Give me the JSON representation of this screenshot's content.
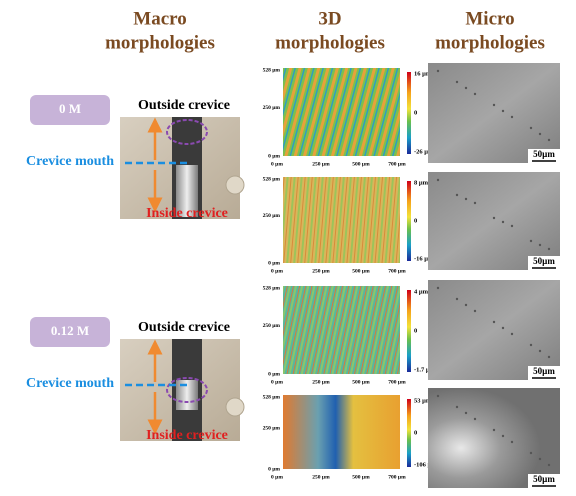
{
  "headers": [
    [
      "Macro",
      "morphologies"
    ],
    [
      "3D",
      "morphologies"
    ],
    [
      "Micro",
      "morphologies"
    ]
  ],
  "map_axes": {
    "y": [
      "528 µm",
      "250 µm",
      "0 µm"
    ],
    "x": [
      "0 µm",
      "250 µm",
      "500 µm",
      "700 µm"
    ]
  },
  "samples": [
    {
      "label": "0 M",
      "outside": "Outside crevice",
      "mouth": "Crevice mouth",
      "inside": "Inside crevice",
      "maps": [
        {
          "colorbar": [
            "16 µm",
            "0",
            "-26 µm"
          ],
          "scale": "50µm"
        },
        {
          "colorbar": [
            "8 µm",
            "0",
            "-16 µm"
          ],
          "scale": "50µm"
        }
      ]
    },
    {
      "label": "0.12 M",
      "outside": "Outside crevice",
      "mouth": "Crevice mouth",
      "inside": "Inside crevice",
      "maps": [
        {
          "colorbar": [
            "4 µm",
            "0",
            "-1.7 µm"
          ],
          "scale": "50µm"
        },
        {
          "colorbar": [
            "53 µm",
            "0",
            "-106 µm"
          ],
          "scale": "50µm"
        }
      ]
    }
  ]
}
